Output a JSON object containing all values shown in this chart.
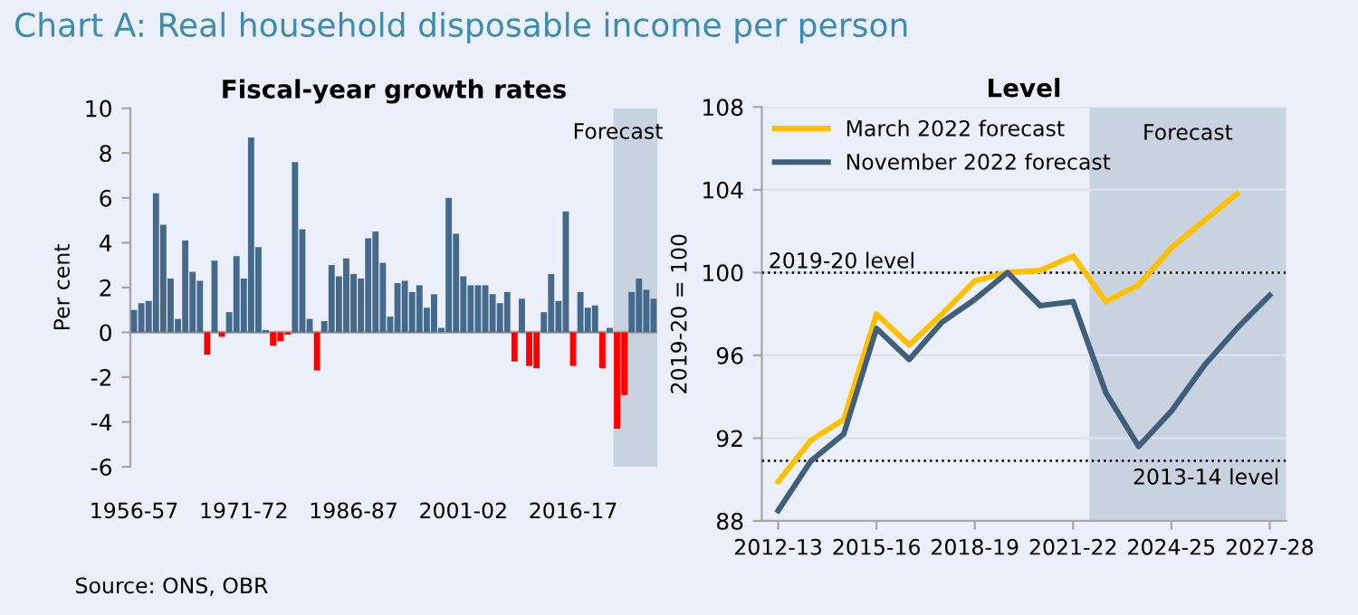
{
  "chart_data": [
    {
      "type": "bar",
      "title": "Fiscal-year growth rates",
      "ylabel": "Per cent",
      "annotations": [
        "Chart A: Real household disposable income per person",
        "Source: ONS, OBR",
        "Forecast"
      ],
      "categories": [
        "1956-57",
        null,
        null,
        null,
        null,
        null,
        null,
        null,
        null,
        null,
        null,
        null,
        null,
        null,
        null,
        "1971-72",
        null,
        null,
        null,
        null,
        null,
        null,
        null,
        null,
        null,
        null,
        null,
        null,
        null,
        null,
        "1986-87",
        null,
        null,
        null,
        null,
        null,
        null,
        null,
        null,
        null,
        null,
        null,
        null,
        null,
        null,
        "2001-02",
        null,
        null,
        null,
        null,
        null,
        null,
        null,
        null,
        null,
        null,
        null,
        null,
        null,
        null,
        "2016-17",
        null,
        null,
        null,
        null,
        null,
        null,
        null,
        null,
        null,
        null,
        null
      ],
      "values": [
        1.0,
        1.3,
        1.4,
        6.2,
        4.8,
        2.4,
        0.6,
        4.1,
        2.7,
        2.3,
        -1.0,
        3.2,
        -0.2,
        0.9,
        3.4,
        2.4,
        8.7,
        3.8,
        0.1,
        -0.6,
        -0.4,
        -0.1,
        7.6,
        4.6,
        0.6,
        -1.7,
        0.5,
        3.0,
        2.5,
        3.3,
        2.6,
        2.4,
        4.2,
        4.5,
        3.1,
        0.7,
        2.2,
        2.3,
        1.8,
        2.1,
        1.1,
        1.7,
        0.2,
        6.0,
        4.4,
        2.5,
        2.1,
        2.1,
        2.1,
        1.7,
        1.3,
        1.8,
        -1.3,
        1.5,
        -1.5,
        -1.6,
        0.9,
        2.6,
        1.4,
        5.4,
        -1.5,
        1.8,
        1.1,
        1.2,
        -1.6,
        0.2,
        -4.3,
        -2.8,
        1.8,
        2.4,
        1.9,
        1.5
      ],
      "colors": [
        "#44698a",
        "#44698a",
        "#44698a",
        "#44698a",
        "#44698a",
        "#44698a",
        "#44698a",
        "#44698a",
        "#44698a",
        "#44698a",
        "#ff0000",
        "#44698a",
        "#ff0000",
        "#44698a",
        "#44698a",
        "#44698a",
        "#44698a",
        "#44698a",
        "#44698a",
        "#ff0000",
        "#ff0000",
        "#ff0000",
        "#44698a",
        "#44698a",
        "#44698a",
        "#ff0000",
        "#44698a",
        "#44698a",
        "#44698a",
        "#44698a",
        "#44698a",
        "#44698a",
        "#44698a",
        "#44698a",
        "#44698a",
        "#44698a",
        "#44698a",
        "#44698a",
        "#44698a",
        "#44698a",
        "#44698a",
        "#44698a",
        "#44698a",
        "#44698a",
        "#44698a",
        "#44698a",
        "#44698a",
        "#44698a",
        "#44698a",
        "#44698a",
        "#44698a",
        "#44698a",
        "#ff0000",
        "#44698a",
        "#ff0000",
        "#ff0000",
        "#44698a",
        "#44698a",
        "#44698a",
        "#44698a",
        "#ff0000",
        "#44698a",
        "#44698a",
        "#44698a",
        "#ff0000",
        "#44698a",
        "#ff0000",
        "#ff0000",
        "#44698a",
        "#44698a",
        "#44698a",
        "#44698a"
      ],
      "ylim": [
        -6,
        10
      ],
      "yticks": [
        -6,
        -4,
        -2,
        0,
        2,
        4,
        6,
        8,
        10
      ],
      "ref_lines": [
        {
          "axis": "y",
          "value": 0,
          "color": "#a6a6a6"
        }
      ],
      "grid": false,
      "legend": false
    },
    {
      "type": "line",
      "title": "Level",
      "ylabel": "2019-20 = 100",
      "categories": [
        "2012-13",
        null,
        null,
        "2015-16",
        null,
        null,
        "2018-19",
        null,
        null,
        "2021-22",
        null,
        null,
        "2024-25",
        null,
        null,
        "2027-28"
      ],
      "series": [
        {
          "name": "March 2022 forecast",
          "color": "#ffc000",
          "values": [
            89.9,
            91.9,
            92.9,
            98.0,
            96.5,
            98.0,
            99.6,
            100.0,
            100.1,
            100.8,
            98.6,
            99.4,
            101.2,
            102.5,
            103.8,
            null
          ]
        },
        {
          "name": "November 2022 forecast",
          "color": "#3f5f7b",
          "values": [
            88.5,
            90.9,
            92.2,
            97.3,
            95.8,
            97.6,
            98.7,
            100.0,
            98.4,
            98.6,
            94.2,
            91.6,
            93.3,
            95.5,
            97.3,
            98.9
          ]
        }
      ],
      "ylim": [
        88,
        108
      ],
      "yticks": [
        88,
        92,
        96,
        100,
        104,
        108
      ],
      "ref_lines": [
        {
          "axis": "y",
          "value": 100,
          "label": "2019-20 level",
          "color": "#000000",
          "line_style": "dotted"
        },
        {
          "axis": "y",
          "value": 90.9,
          "label": "2013-14 level",
          "color": "#000000",
          "line_style": "dotted"
        }
      ],
      "annotations": [
        "Forecast"
      ],
      "grid": "y",
      "legend": "top left",
      "marker": "none",
      "line_style": "solid"
    }
  ]
}
